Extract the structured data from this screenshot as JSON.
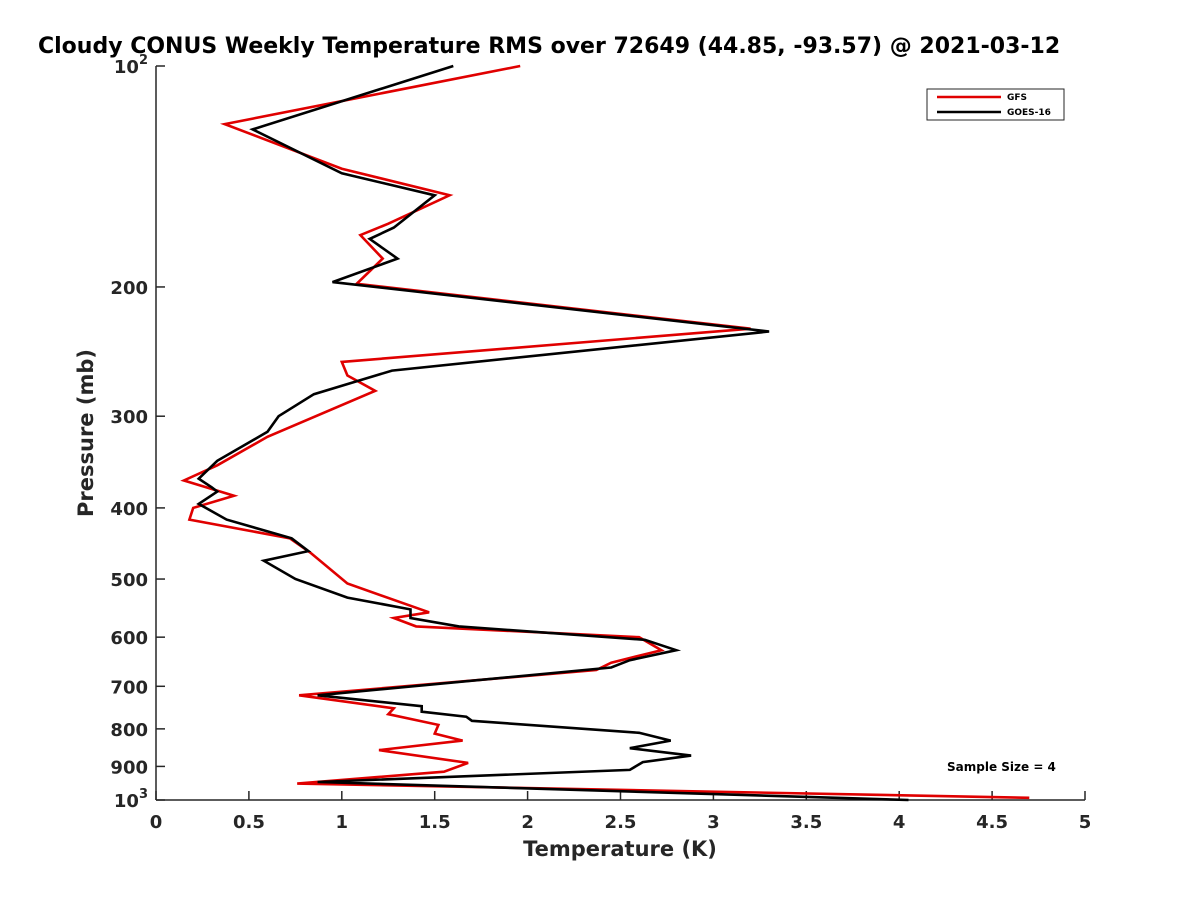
{
  "chart_data": {
    "type": "line",
    "title": "Cloudy CONUS Weekly Temperature RMS over 72649 (44.85, -93.57) @ 2021-03-12",
    "xlabel": "Temperature (K)",
    "ylabel": "Pressure (mb)",
    "xlim": [
      0,
      5
    ],
    "ylim": [
      100,
      1000
    ],
    "yscale": "log",
    "y_reversed": true,
    "grid": false,
    "legend_position": "top-right",
    "x_ticks": [
      0,
      0.5,
      1,
      1.5,
      2,
      2.5,
      3,
      3.5,
      4,
      4.5,
      5
    ],
    "x_tick_labels": [
      "0",
      "0.5",
      "1",
      "1.5",
      "2",
      "2.5",
      "3",
      "3.5",
      "4",
      "4.5",
      "5"
    ],
    "y_ticks": [
      100,
      200,
      300,
      400,
      500,
      600,
      700,
      800,
      900,
      1000
    ],
    "y_tick_labels": [
      {
        "base": "10",
        "exp": "2"
      },
      {
        "base": "200",
        "exp": ""
      },
      {
        "base": "300",
        "exp": ""
      },
      {
        "base": "400",
        "exp": ""
      },
      {
        "base": "500",
        "exp": ""
      },
      {
        "base": "600",
        "exp": ""
      },
      {
        "base": "700",
        "exp": ""
      },
      {
        "base": "800",
        "exp": ""
      },
      {
        "base": "900",
        "exp": ""
      },
      {
        "base": "10",
        "exp": "3"
      }
    ],
    "annotation": "Sample Size = 4",
    "series": [
      {
        "name": "GFS",
        "color": "#e00000",
        "points": [
          [
            1.96,
            100
          ],
          [
            0.37,
            120
          ],
          [
            1.0,
            138
          ],
          [
            1.58,
            150
          ],
          [
            1.25,
            164
          ],
          [
            1.1,
            170
          ],
          [
            1.22,
            183
          ],
          [
            1.08,
            198
          ],
          [
            3.2,
            228
          ],
          [
            1.0,
            253
          ],
          [
            1.03,
            264
          ],
          [
            1.18,
            277
          ],
          [
            0.6,
            320
          ],
          [
            0.33,
            350
          ],
          [
            0.15,
            367
          ],
          [
            0.42,
            385
          ],
          [
            0.2,
            400
          ],
          [
            0.18,
            415
          ],
          [
            0.72,
            440
          ],
          [
            0.83,
            460
          ],
          [
            1.03,
            507
          ],
          [
            1.47,
            555
          ],
          [
            1.28,
            565
          ],
          [
            1.4,
            580
          ],
          [
            2.6,
            600
          ],
          [
            2.72,
            625
          ],
          [
            2.45,
            650
          ],
          [
            2.37,
            665
          ],
          [
            0.77,
            720
          ],
          [
            1.28,
            750
          ],
          [
            1.25,
            764
          ],
          [
            1.52,
            790
          ],
          [
            1.5,
            812
          ],
          [
            1.65,
            830
          ],
          [
            1.2,
            855
          ],
          [
            1.68,
            890
          ],
          [
            1.55,
            915
          ],
          [
            0.76,
            950
          ],
          [
            4.7,
            993
          ]
        ]
      },
      {
        "name": "GOES-16",
        "color": "#000000",
        "points": [
          [
            1.6,
            100
          ],
          [
            0.52,
            122
          ],
          [
            1.0,
            140
          ],
          [
            1.5,
            150
          ],
          [
            1.28,
            166
          ],
          [
            1.15,
            172
          ],
          [
            1.3,
            183
          ],
          [
            0.95,
            197
          ],
          [
            3.3,
            230
          ],
          [
            1.27,
            260
          ],
          [
            0.85,
            280
          ],
          [
            0.66,
            300
          ],
          [
            0.6,
            315
          ],
          [
            0.33,
            345
          ],
          [
            0.23,
            365
          ],
          [
            0.3,
            375
          ],
          [
            0.33,
            380
          ],
          [
            0.23,
            395
          ],
          [
            0.38,
            415
          ],
          [
            0.73,
            440
          ],
          [
            0.82,
            458
          ],
          [
            0.58,
            472
          ],
          [
            0.75,
            500
          ],
          [
            1.03,
            530
          ],
          [
            1.37,
            550
          ],
          [
            1.37,
            565
          ],
          [
            1.63,
            580
          ],
          [
            2.63,
            605
          ],
          [
            2.8,
            625
          ],
          [
            2.55,
            645
          ],
          [
            2.45,
            660
          ],
          [
            0.87,
            720
          ],
          [
            1.43,
            745
          ],
          [
            1.43,
            758
          ],
          [
            1.67,
            770
          ],
          [
            1.7,
            780
          ],
          [
            2.6,
            810
          ],
          [
            2.77,
            830
          ],
          [
            2.55,
            850
          ],
          [
            2.88,
            870
          ],
          [
            2.62,
            888
          ],
          [
            2.55,
            910
          ],
          [
            0.87,
            945
          ],
          [
            4.05,
            1000
          ]
        ]
      }
    ]
  }
}
